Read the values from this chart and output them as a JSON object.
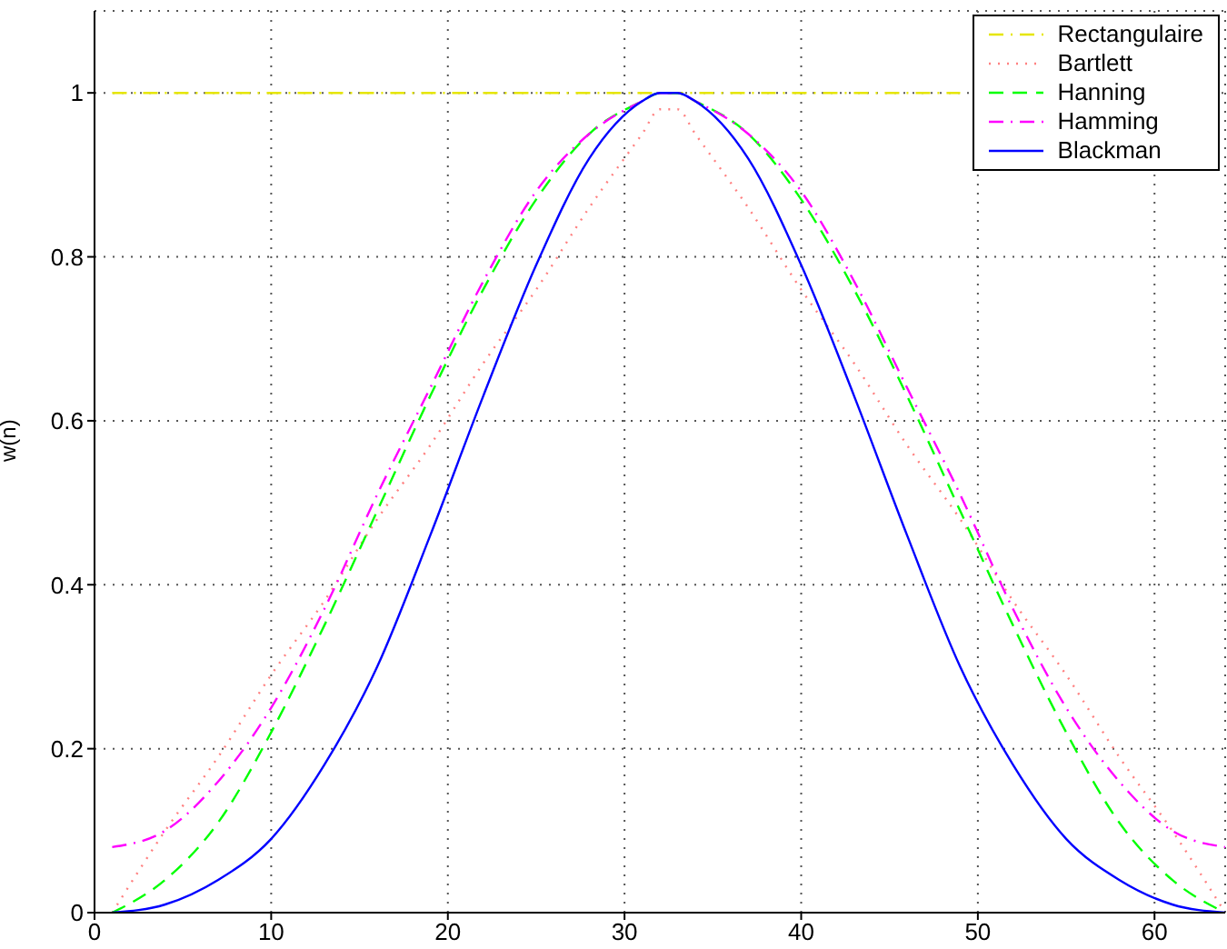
{
  "chart_data": {
    "type": "line",
    "ylabel": "w(n)",
    "x": [
      1,
      4,
      7,
      10,
      13,
      16,
      19,
      22,
      25,
      28,
      31,
      32,
      33,
      34,
      37,
      40,
      43,
      46,
      49,
      52,
      55,
      58,
      61,
      64
    ],
    "series": [
      {
        "name": "Rectangulaire",
        "color": "#e6e600",
        "line_style": "dashdot",
        "values": [
          1,
          1,
          1,
          1,
          1,
          1,
          1,
          1,
          1,
          1,
          1,
          1,
          1,
          1,
          1,
          1,
          1,
          1,
          1,
          null,
          null,
          null,
          null,
          null
        ]
      },
      {
        "name": "Bartlett",
        "color": "#ff8080",
        "line_style": "dotted",
        "values": [
          0,
          0.1,
          0.19,
          0.29,
          0.38,
          0.48,
          0.57,
          0.67,
          0.76,
          0.86,
          0.95,
          0.98,
          0.98,
          0.95,
          0.86,
          0.76,
          0.67,
          0.57,
          0.48,
          0.38,
          0.29,
          0.19,
          0.1,
          0
        ]
      },
      {
        "name": "Hanning",
        "color": "#00ff00",
        "line_style": "dashed",
        "values": [
          0,
          0.04,
          0.11,
          0.22,
          0.35,
          0.49,
          0.63,
          0.76,
          0.87,
          0.95,
          0.99,
          1,
          1,
          0.99,
          0.95,
          0.87,
          0.76,
          0.63,
          0.49,
          0.35,
          0.22,
          0.11,
          0.04,
          0
        ]
      },
      {
        "name": "Hamming",
        "color": "#ff00ff",
        "line_style": "dashdot",
        "values": [
          0.08,
          0.1,
          0.16,
          0.25,
          0.37,
          0.51,
          0.64,
          0.77,
          0.88,
          0.95,
          0.99,
          1,
          1,
          0.99,
          0.95,
          0.88,
          0.77,
          0.64,
          0.51,
          0.37,
          0.25,
          0.16,
          0.1,
          0.08
        ]
      },
      {
        "name": "Blackman",
        "color": "#0000ff",
        "line_style": "solid",
        "values": [
          0,
          0.01,
          0.04,
          0.09,
          0.18,
          0.3,
          0.46,
          0.63,
          0.79,
          0.92,
          0.99,
          1,
          1,
          0.99,
          0.92,
          0.79,
          0.63,
          0.46,
          0.3,
          0.18,
          0.09,
          0.04,
          0.01,
          0
        ]
      }
    ],
    "xlim": [
      0,
      64
    ],
    "xticks": [
      0,
      10,
      20,
      30,
      40,
      50,
      60
    ],
    "ylim": [
      0,
      1.1
    ],
    "yticks": [
      0,
      0.2,
      0.4,
      0.6,
      0.8,
      1
    ],
    "grid": true,
    "legend": "top right",
    "marker": "none"
  }
}
